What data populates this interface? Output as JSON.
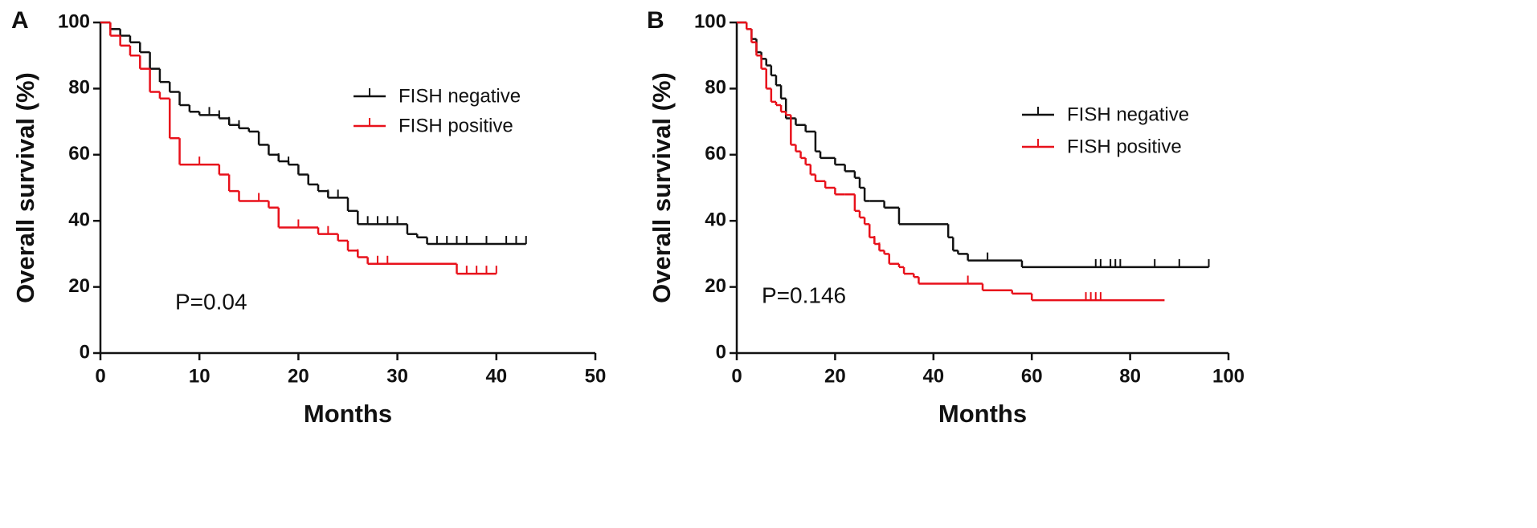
{
  "chart_data": [
    {
      "type": "step",
      "panel_label": "A",
      "xlabel": "Months",
      "ylabel": "Overall survival (%)",
      "annotation": "P=0.04",
      "xlim": [
        0,
        50
      ],
      "ylim": [
        0,
        100
      ],
      "xticks": [
        0,
        10,
        20,
        30,
        40,
        50
      ],
      "yticks": [
        0,
        20,
        40,
        60,
        80,
        100
      ],
      "series": [
        {
          "name": "FISH negative",
          "color": "#111111",
          "x": [
            0,
            1,
            2,
            3,
            4,
            5,
            6,
            7,
            8,
            9,
            10,
            12,
            13,
            14,
            15,
            16,
            17,
            18,
            19,
            20,
            21,
            22,
            23,
            25,
            26,
            27,
            31,
            32,
            33,
            43
          ],
          "values": [
            100,
            98,
            96,
            94,
            91,
            86,
            82,
            79,
            75,
            73,
            72,
            71,
            69,
            68,
            67,
            63,
            60,
            58,
            57,
            54,
            51,
            49,
            47,
            43,
            39,
            39,
            36,
            35,
            33,
            33
          ],
          "censor_x": [
            11,
            12,
            13,
            14,
            18,
            19,
            23,
            24,
            27,
            28,
            29,
            30,
            34,
            35,
            36,
            37,
            39,
            41,
            42,
            43
          ],
          "censor_values": [
            72,
            71,
            69,
            68,
            58,
            57,
            47,
            47,
            39,
            39,
            39,
            39,
            33,
            33,
            33,
            33,
            33,
            33,
            33,
            33
          ]
        },
        {
          "name": "FISH positive",
          "color": "#e8111b",
          "x": [
            0,
            1,
            2,
            3,
            4,
            5,
            6,
            7,
            8,
            10,
            12,
            13,
            14,
            16,
            17,
            18,
            20,
            22,
            24,
            25,
            26,
            27,
            36,
            40
          ],
          "values": [
            100,
            96,
            93,
            90,
            86,
            79,
            77,
            65,
            57,
            57,
            54,
            49,
            46,
            46,
            44,
            38,
            38,
            36,
            34,
            31,
            29,
            27,
            24,
            24
          ],
          "censor_x": [
            10,
            16,
            20,
            23,
            26,
            28,
            29,
            37,
            38,
            39,
            40
          ],
          "censor_values": [
            57,
            46,
            38,
            36,
            29,
            27,
            27,
            24,
            24,
            24,
            24
          ]
        }
      ]
    },
    {
      "type": "step",
      "panel_label": "B",
      "xlabel": "Months",
      "ylabel": "Overall survival (%)",
      "annotation": "P=0.146",
      "xlim": [
        0,
        100
      ],
      "ylim": [
        0,
        100
      ],
      "xticks": [
        0,
        20,
        40,
        60,
        80,
        100
      ],
      "yticks": [
        0,
        20,
        40,
        60,
        80,
        100
      ],
      "series": [
        {
          "name": "FISH negative",
          "color": "#111111",
          "x": [
            0,
            2,
            3,
            4,
            5,
            6,
            7,
            8,
            9,
            10,
            12,
            14,
            16,
            17,
            20,
            22,
            24,
            25,
            26,
            27,
            30,
            33,
            43,
            44,
            45,
            47,
            58,
            96
          ],
          "values": [
            100,
            98,
            95,
            91,
            89,
            87,
            84,
            81,
            77,
            71,
            69,
            67,
            61,
            59,
            57,
            55,
            53,
            50,
            46,
            46,
            44,
            39,
            35,
            31,
            30,
            28,
            26,
            26
          ],
          "censor_x": [
            51,
            73,
            74,
            76,
            77,
            78,
            85,
            90,
            96
          ],
          "censor_values": [
            28,
            26,
            26,
            26,
            26,
            26,
            26,
            26,
            26
          ]
        },
        {
          "name": "FISH positive",
          "color": "#e8111b",
          "x": [
            0,
            2,
            3,
            4,
            5,
            6,
            7,
            8,
            9,
            10,
            11,
            12,
            13,
            14,
            15,
            16,
            18,
            20,
            22,
            24,
            25,
            26,
            27,
            28,
            29,
            30,
            31,
            33,
            34,
            36,
            37,
            47,
            50,
            56,
            60,
            87
          ],
          "values": [
            100,
            98,
            94,
            90,
            86,
            80,
            76,
            75,
            73,
            72,
            63,
            61,
            59,
            57,
            54,
            52,
            50,
            48,
            48,
            43,
            41,
            39,
            35,
            33,
            31,
            30,
            27,
            26,
            24,
            23,
            21,
            21,
            19,
            18,
            16,
            16
          ],
          "censor_x": [
            28,
            29,
            47,
            71,
            72,
            73,
            74
          ],
          "censor_values": [
            33,
            31,
            21,
            16,
            16,
            16,
            16
          ]
        }
      ]
    }
  ]
}
